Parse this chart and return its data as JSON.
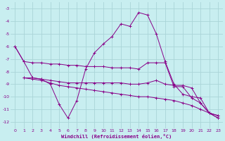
{
  "xlabel": "Windchill (Refroidissement éolien,°C)",
  "bg_color": "#c8eef0",
  "grid_color": "#aad4d8",
  "line_color": "#880088",
  "xlim": [
    -0.5,
    23.5
  ],
  "ylim": [
    -12.5,
    -2.5
  ],
  "yticks": [
    -3,
    -4,
    -5,
    -6,
    -7,
    -8,
    -9,
    -10,
    -11,
    -12
  ],
  "xticks": [
    0,
    1,
    2,
    3,
    4,
    5,
    6,
    7,
    8,
    9,
    10,
    11,
    12,
    13,
    14,
    15,
    16,
    17,
    18,
    19,
    20,
    21,
    22,
    23
  ],
  "lines": [
    {
      "x": [
        0,
        1,
        2,
        3,
        4,
        5,
        6,
        7,
        8,
        9,
        10,
        11,
        12,
        13,
        14,
        15,
        16,
        17,
        18,
        19,
        20,
        21,
        22,
        23
      ],
      "y": [
        -6.0,
        -7.2,
        -8.5,
        -8.6,
        -9.0,
        -10.6,
        -11.7,
        -10.3,
        -7.8,
        -6.5,
        -5.8,
        -5.2,
        -4.2,
        -4.4,
        -3.3,
        -3.5,
        -5.0,
        -7.2,
        -9.0,
        -9.8,
        -10.0,
        -10.1,
        -11.3,
        -11.5
      ]
    },
    {
      "x": [
        0,
        1,
        2,
        3,
        4,
        5,
        6,
        7,
        8,
        9,
        10,
        11,
        12,
        13,
        14,
        15,
        16,
        17,
        18,
        19,
        20,
        21,
        22,
        23
      ],
      "y": [
        -6.0,
        -7.2,
        -7.3,
        -7.3,
        -7.4,
        -7.4,
        -7.5,
        -7.5,
        -7.6,
        -7.6,
        -7.6,
        -7.7,
        -7.7,
        -7.7,
        -7.8,
        -7.3,
        -7.3,
        -7.3,
        -9.2,
        -9.2,
        -10.1,
        -10.5,
        -11.3,
        -11.5
      ]
    },
    {
      "x": [
        1,
        2,
        3,
        4,
        5,
        6,
        7,
        8,
        9,
        10,
        11,
        12,
        13,
        14,
        15,
        16,
        17,
        18,
        19,
        20,
        21,
        22,
        23
      ],
      "y": [
        -8.5,
        -8.5,
        -8.6,
        -8.7,
        -8.8,
        -8.9,
        -8.9,
        -8.9,
        -8.9,
        -8.9,
        -8.9,
        -8.9,
        -9.0,
        -9.0,
        -8.9,
        -8.7,
        -9.0,
        -9.1,
        -9.1,
        -9.3,
        -10.5,
        -11.3,
        -11.7
      ]
    },
    {
      "x": [
        1,
        2,
        3,
        4,
        5,
        6,
        7,
        8,
        9,
        10,
        11,
        12,
        13,
        14,
        15,
        16,
        17,
        18,
        19,
        20,
        21,
        22,
        23
      ],
      "y": [
        -8.5,
        -8.6,
        -8.7,
        -8.9,
        -9.1,
        -9.2,
        -9.3,
        -9.4,
        -9.5,
        -9.6,
        -9.7,
        -9.8,
        -9.9,
        -10.0,
        -10.0,
        -10.1,
        -10.2,
        -10.3,
        -10.5,
        -10.7,
        -11.0,
        -11.3,
        -11.7
      ]
    }
  ]
}
